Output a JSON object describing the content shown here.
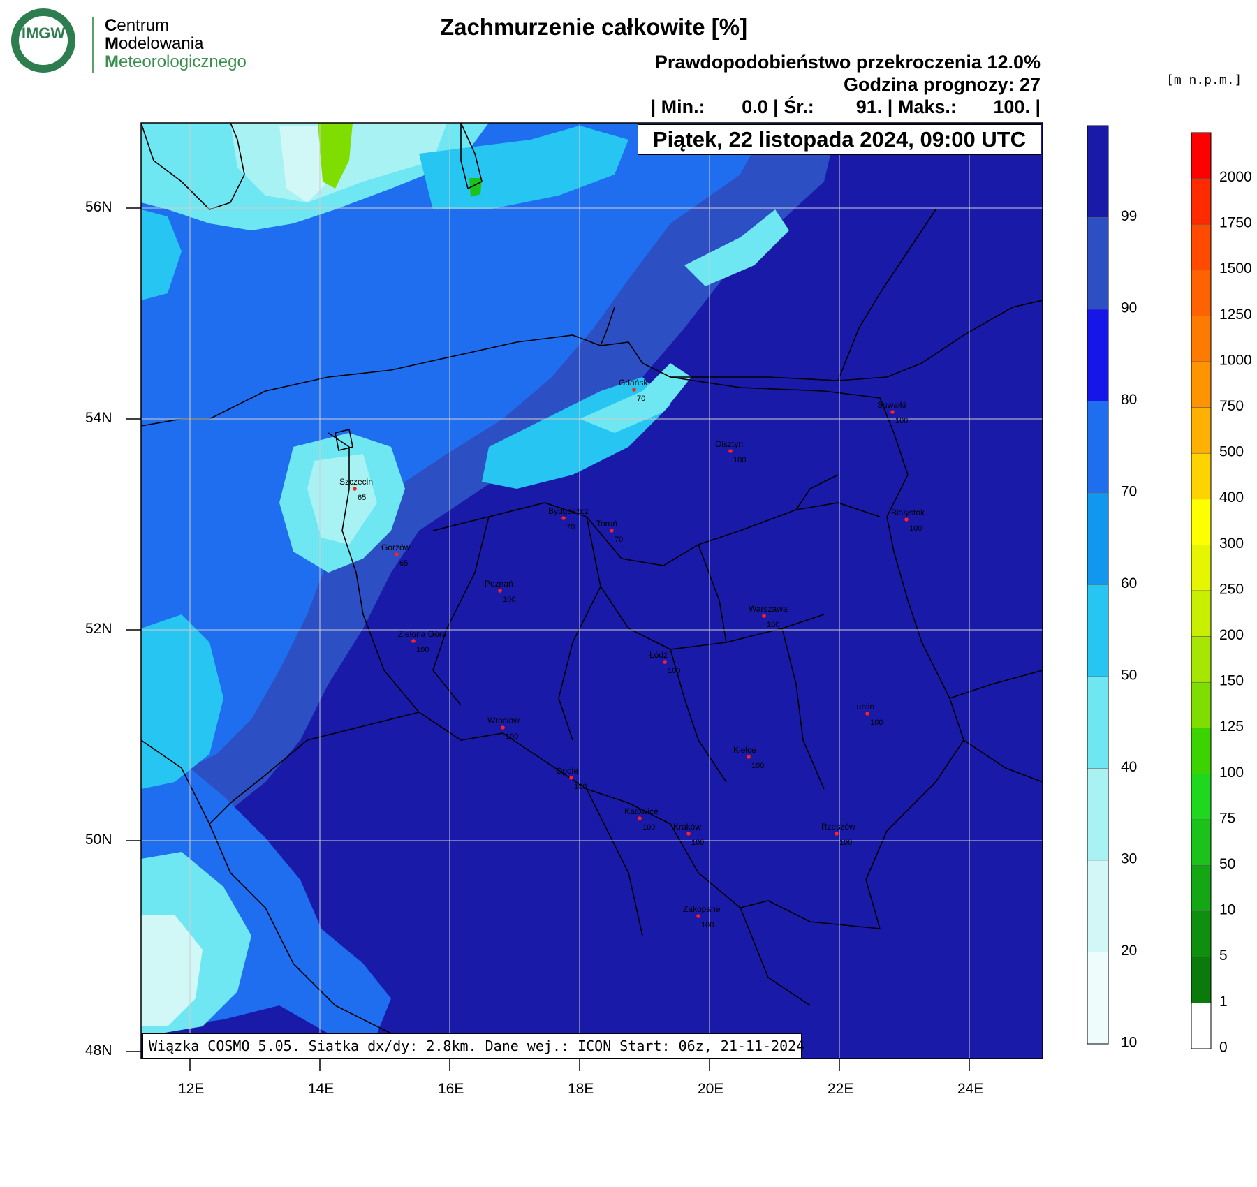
{
  "logo": {
    "acronym": "IMGW",
    "org_line1_cap": "C",
    "org_line1_rest": "entrum",
    "org_line2_cap": "M",
    "org_line2_rest": "odelowania",
    "org_line3_cap": "M",
    "org_line3_rest": "eteorologicznego"
  },
  "header": {
    "title": "Zachmurzenie całkowite [%]",
    "probability": "Prawdopodobieństwo przekroczenia 12.0%",
    "forecast_hour": "Godzina prognozy: 27",
    "stats": "| Min.:       0.0 | Śr.:        91. | Maks.:       100. |",
    "date": "Piątek, 22 listopada 2024, 09:00 UTC"
  },
  "footer": "Wiązka COSMO 5.05. Siatka dx/dy: 2.8km. Dane wej.: ICON Start: 06z, 21-11-2024",
  "map": {
    "lat_labels": [
      "56N",
      "54N",
      "52N",
      "50N",
      "48N"
    ],
    "lon_labels": [
      "12E",
      "14E",
      "16E",
      "18E",
      "20E",
      "22E",
      "24E"
    ],
    "cities": [
      {
        "name": "Gdańsk",
        "value": "70"
      },
      {
        "name": "Suwałki",
        "value": "100"
      },
      {
        "name": "Olsztyn",
        "value": "100"
      },
      {
        "name": "Szczecin",
        "value": "65"
      },
      {
        "name": "Bydgoszcz",
        "value": "70"
      },
      {
        "name": "Toruń",
        "value": "70"
      },
      {
        "name": "Białystok",
        "value": "100"
      },
      {
        "name": "Gorzów",
        "value": "65"
      },
      {
        "name": "Poznań",
        "value": "100"
      },
      {
        "name": "Warszawa",
        "value": "100"
      },
      {
        "name": "Zielona Góra",
        "value": "100"
      },
      {
        "name": "Łódź",
        "value": "100"
      },
      {
        "name": "Lublin",
        "value": "100"
      },
      {
        "name": "Wrocław",
        "value": "100"
      },
      {
        "name": "Kielce",
        "value": "100"
      },
      {
        "name": "Opole",
        "value": "100"
      },
      {
        "name": "Katowice",
        "value": "100"
      },
      {
        "name": "Kraków",
        "value": "100"
      },
      {
        "name": "Rzeszów",
        "value": "100"
      },
      {
        "name": "Zakopane",
        "value": "100"
      }
    ]
  },
  "cloud_scale": {
    "labels": [
      "99",
      "90",
      "80",
      "70",
      "60",
      "50",
      "40",
      "30",
      "20",
      "10"
    ],
    "colors": [
      "#1a1aa8",
      "#2c4fc4",
      "#1616e8",
      "#1f6ef0",
      "#1297ee",
      "#27c6f2",
      "#6ee7f2",
      "#a8f2f4",
      "#d2f7f7",
      "#eefcfc"
    ]
  },
  "terrain_scale": {
    "unit": "[m n.p.m.]",
    "labels": [
      "2000",
      "1750",
      "1500",
      "1250",
      "1000",
      "750",
      "500",
      "400",
      "300",
      "250",
      "200",
      "150",
      "125",
      "100",
      "75",
      "50",
      "10",
      "5",
      "1",
      "0"
    ],
    "colors": [
      "#ff0000",
      "#ff2a00",
      "#ff4a00",
      "#ff6200",
      "#ff7a00",
      "#ff9400",
      "#ffb000",
      "#ffd200",
      "#ffff00",
      "#e6f500",
      "#c8ee00",
      "#a6e600",
      "#7fde00",
      "#3cd400",
      "#1ed81e",
      "#1ac21a",
      "#13a813",
      "#0e8f0e",
      "#0a7a0a",
      "#ffffff"
    ]
  }
}
